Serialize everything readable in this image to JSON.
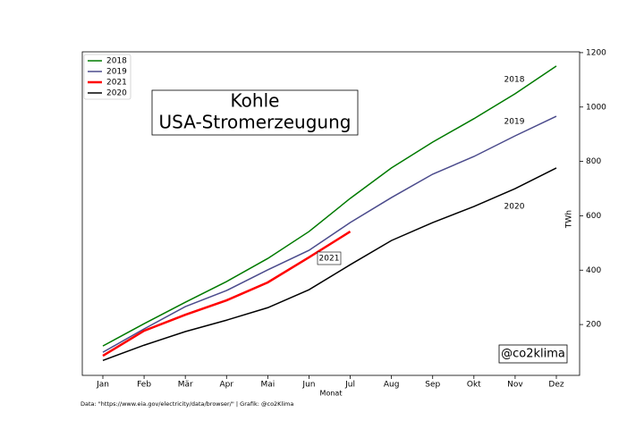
{
  "chart_data": {
    "type": "line",
    "title": "Kohle",
    "subtitle": "USA-Stromerzeugung",
    "watermark": "@co2klima",
    "source": "Data: \"https://www.eia.gov/electricity/data/browser/\" | Grafik: @co2Klima",
    "xlabel": "Monat",
    "ylabel": "TWh",
    "categories": [
      "Jan",
      "Feb",
      "Mär",
      "Apr",
      "Mai",
      "Jun",
      "Jul",
      "Aug",
      "Sep",
      "Okt",
      "Nov",
      "Dez"
    ],
    "series": [
      {
        "name": "2018",
        "color": "#007a00",
        "values": [
          121,
          203,
          282,
          358,
          443,
          542,
          664,
          776,
          871,
          957,
          1049,
          1151
        ]
      },
      {
        "name": "2019",
        "color": "#4b4b8c",
        "values": [
          98,
          184,
          266,
          325,
          401,
          473,
          575,
          667,
          753,
          818,
          894,
          966
        ]
      },
      {
        "name": "2021",
        "color": "#ff0000",
        "values": [
          85,
          177,
          236,
          289,
          355,
          447,
          542,
          null,
          null,
          null,
          null,
          null
        ]
      },
      {
        "name": "2020",
        "color": "#000000",
        "values": [
          68,
          124,
          174,
          216,
          262,
          328,
          420,
          509,
          575,
          634,
          700,
          776
        ]
      }
    ],
    "annotations": [
      {
        "text": "2018",
        "color": "#007a00"
      },
      {
        "text": "2019",
        "color": "#4b4b8c"
      },
      {
        "text": "2021",
        "color": "#cc0000"
      },
      {
        "text": "2020",
        "color": "#000000"
      }
    ],
    "ylim": [
      13,
      1203
    ],
    "yticks": [
      200,
      400,
      600,
      800,
      1000,
      1200
    ],
    "yaxis_side": "right",
    "legend": "upper left",
    "grid": false
  }
}
